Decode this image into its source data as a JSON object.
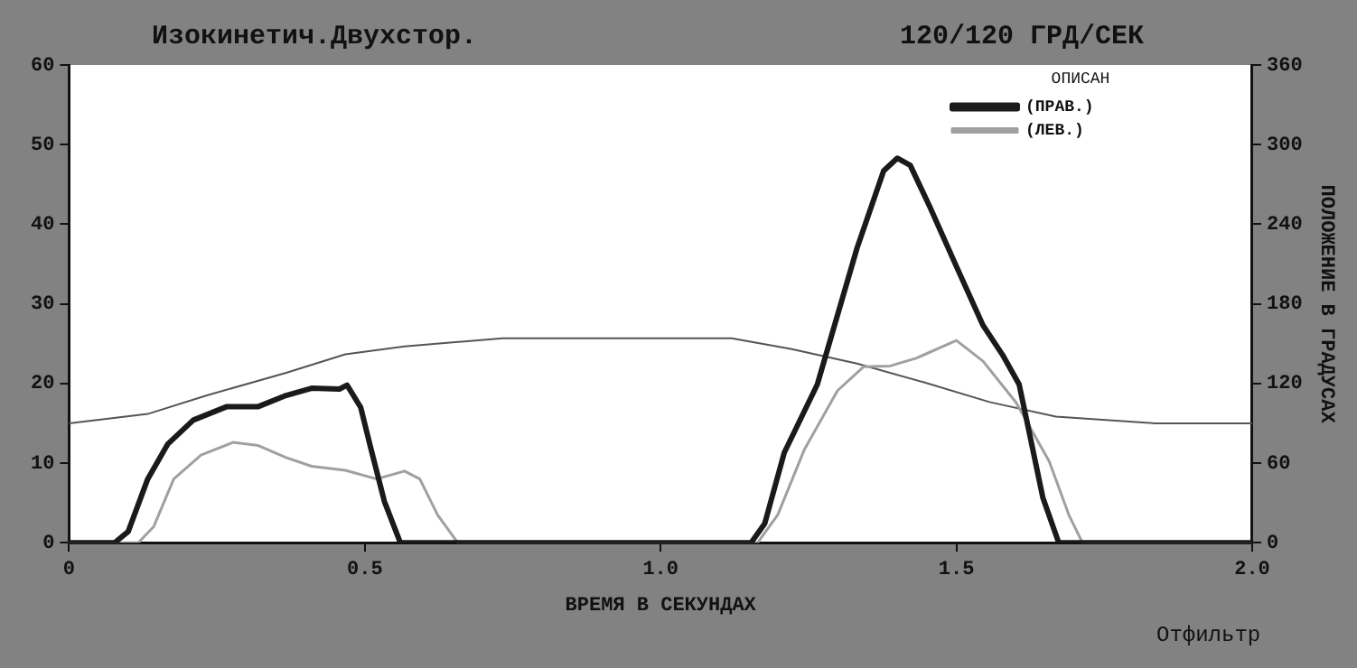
{
  "chart_data": {
    "type": "line",
    "title": "Изокинетич.Двухстор.",
    "subtitle": "120/120 ГРД/СЕК",
    "xlabel": "ВРЕМЯ В СЕКУНДАХ",
    "y2label": "ПОЛОЖЕНИЕ В ГРАДУСАХ",
    "legend_title": "ОПИСАН",
    "legend": "top right",
    "grid": false,
    "marker": "none",
    "line_style": "solid",
    "xlim": [
      0,
      2
    ],
    "xticks": [
      0,
      0.5,
      {
        "value": 1,
        "label": "1.0"
      },
      1.5,
      {
        "value": 2,
        "label": "2.0"
      }
    ],
    "ylim": [
      0,
      60
    ],
    "yticks": [
      0,
      10,
      20,
      30,
      40,
      50,
      60
    ],
    "y2lim": [
      0,
      360
    ],
    "y2ticks": [
      0,
      60,
      120,
      180,
      240,
      300,
      360
    ],
    "annotations": [
      "Отфильтр"
    ],
    "series": [
      {
        "name": "(ПРАВ.)",
        "color": "#1a1a1a",
        "x": [
          0,
          0.077,
          0.1,
          0.133,
          0.167,
          0.21,
          0.267,
          0.32,
          0.367,
          0.41,
          0.457,
          0.47,
          0.493,
          0.51,
          0.533,
          0.56,
          1.153,
          1.176,
          1.209,
          1.265,
          1.332,
          1.377,
          1.4,
          1.422,
          1.455,
          1.5,
          1.545,
          1.578,
          1.606,
          1.623,
          1.646,
          1.673,
          2
        ],
        "values": [
          0,
          0,
          1.4,
          8,
          12.4,
          15.4,
          17.1,
          17.1,
          18.5,
          19.4,
          19.3,
          19.8,
          17,
          11.9,
          5.2,
          0,
          0,
          2.4,
          11.3,
          19.9,
          37,
          46.7,
          48.3,
          47.4,
          42.2,
          34.7,
          27.3,
          23.6,
          19.9,
          13.9,
          5.7,
          0,
          0
        ]
      },
      {
        "name": "(ЛЕВ.)",
        "color": "#a0a0a0",
        "x": [
          0,
          0.117,
          0.143,
          0.177,
          0.223,
          0.277,
          0.32,
          0.367,
          0.41,
          0.467,
          0.52,
          0.567,
          0.593,
          0.623,
          0.657,
          1.164,
          1.198,
          1.243,
          1.299,
          1.343,
          1.388,
          1.433,
          1.5,
          1.545,
          1.601,
          1.657,
          1.69,
          1.713,
          2
        ],
        "values": [
          0,
          0,
          2,
          8,
          11,
          12.6,
          12.2,
          10.7,
          9.6,
          9.1,
          8,
          9,
          8,
          3.5,
          0,
          0,
          3.5,
          11.7,
          19.1,
          22.1,
          22.2,
          23.2,
          25.4,
          22.8,
          17.6,
          10.2,
          3.5,
          0,
          0
        ]
      },
      {
        "color": "#555555",
        "axis": "y2",
        "x": [
          0,
          0.133,
          0.233,
          0.367,
          0.467,
          0.567,
          0.733,
          0.967,
          1.12,
          1.22,
          1.332,
          1.444,
          1.556,
          1.668,
          1.836,
          2
        ],
        "values": [
          90,
          97,
          111,
          128,
          142,
          148,
          154,
          154,
          154,
          146,
          135,
          121,
          106,
          95,
          90,
          90
        ]
      }
    ]
  }
}
